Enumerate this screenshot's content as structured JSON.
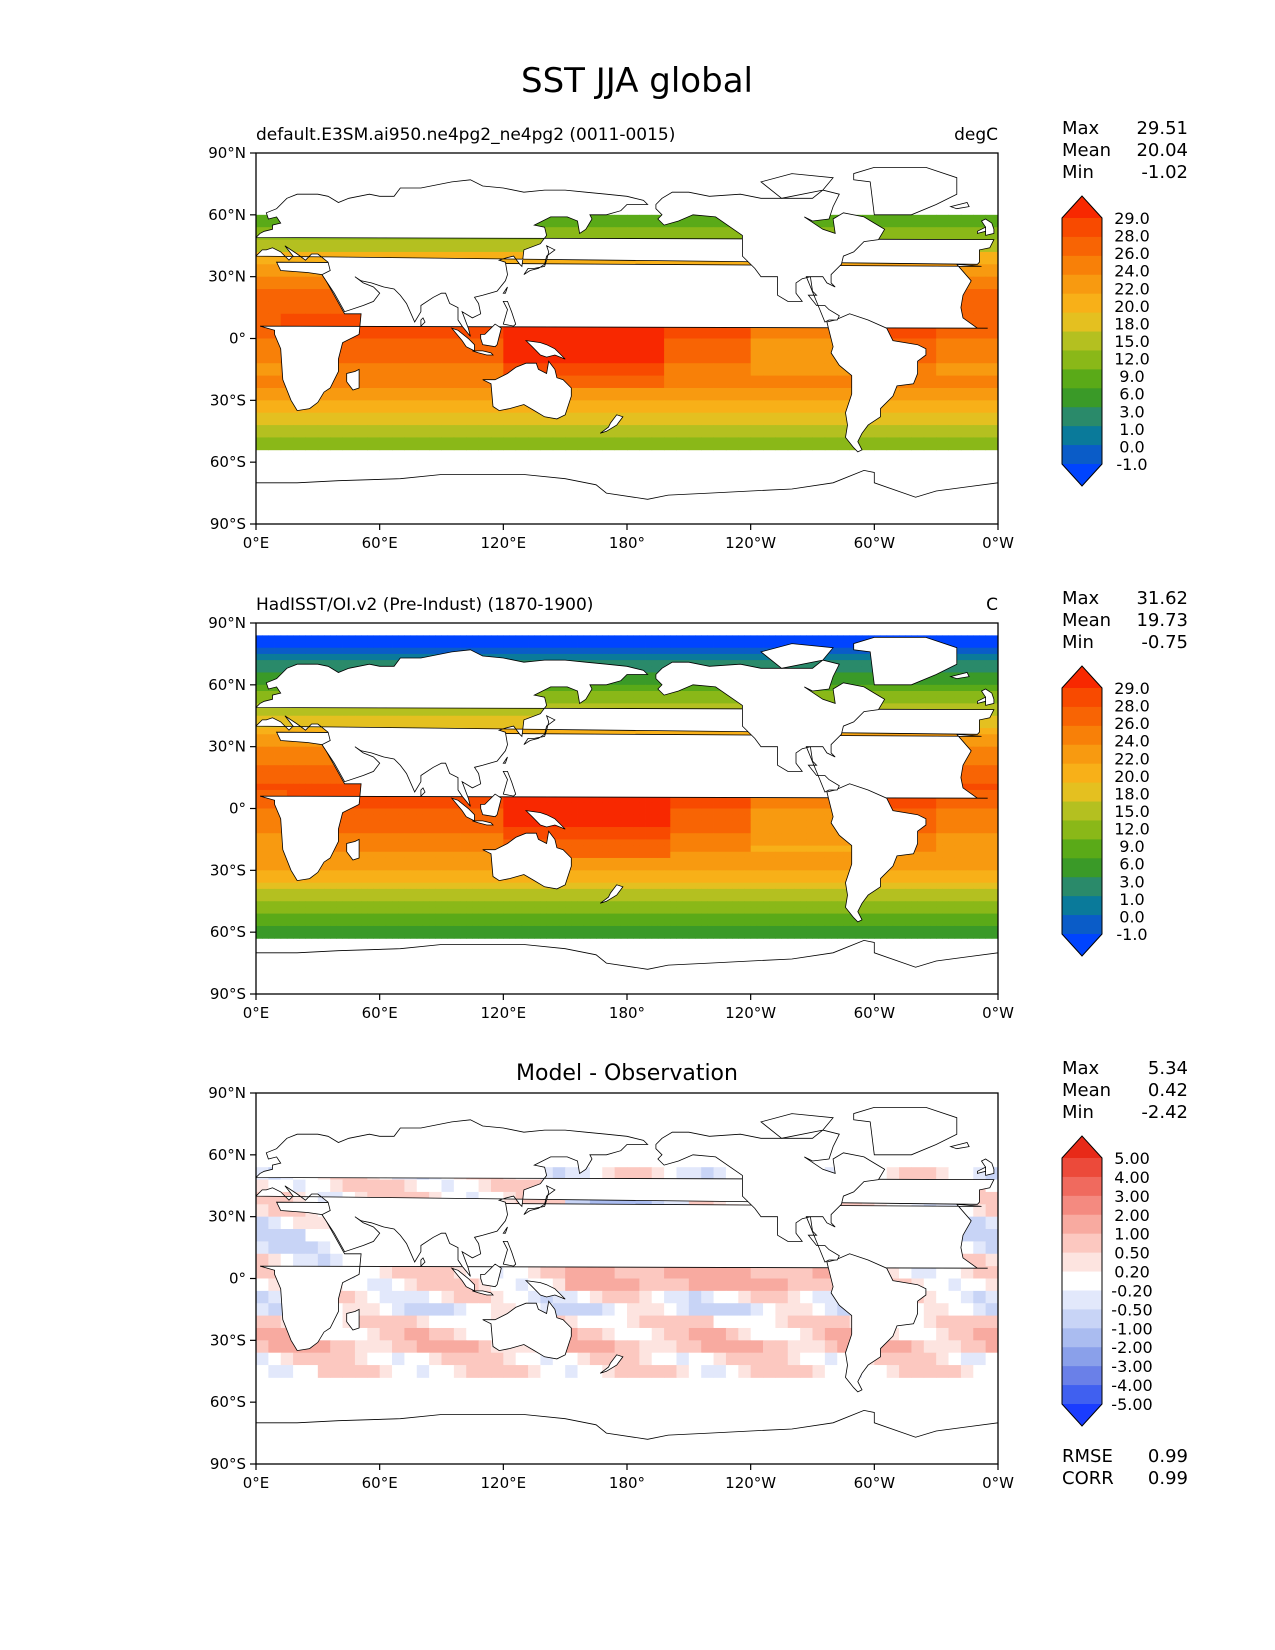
{
  "title": "SST JJA global",
  "colors": {
    "sst_levels": [
      "#0044ff",
      "#0a5cc8",
      "#0a7a9a",
      "#2a8a6a",
      "#3a9a28",
      "#5aaa18",
      "#8ab818",
      "#b4c020",
      "#e4c020",
      "#f8b018",
      "#f89a10",
      "#f88008",
      "#f86404",
      "#f84a00",
      "#f82800"
    ],
    "diff_levels": [
      "#1a3cff",
      "#4060f0",
      "#6a80e8",
      "#8aa0ea",
      "#aabcf0",
      "#c8d4f6",
      "#e2e8fb",
      "#ffffff",
      "#fde4e0",
      "#fcc8c0",
      "#f8aaa0",
      "#f48a80",
      "#f06a5e",
      "#ec4a3a",
      "#e82a18"
    ],
    "land_outline": "#000000"
  },
  "chart_data": [
    {
      "id": "model",
      "type": "heatmap",
      "title_left": "default.E3SM.ai950.ne4pg2_ne4pg2 (0011-0015)",
      "title_right": "degC",
      "stats": [
        {
          "label": "Max",
          "value": "29.51"
        },
        {
          "label": "Mean",
          "value": "20.04"
        },
        {
          "label": "Min",
          "value": "-1.02"
        }
      ],
      "colorbar_levels": [
        "29.0",
        "28.0",
        "26.0",
        "24.0",
        "22.0",
        "20.0",
        "18.0",
        "15.0",
        "12.0",
        "9.0",
        "6.0",
        "3.0",
        "1.0",
        "0.0",
        "-1.0"
      ],
      "x_ticks": [
        "0°E",
        "60°E",
        "120°E",
        "180°",
        "120°W",
        "60°W",
        "0°W"
      ],
      "y_ticks": [
        "90°N",
        "60°N",
        "30°N",
        "0°",
        "30°S",
        "60°S",
        "90°S"
      ],
      "xlim": [
        0,
        360
      ],
      "ylim": [
        -90,
        90
      ],
      "field": "sst"
    },
    {
      "id": "obs",
      "type": "heatmap",
      "title_left": "HadISST/OI.v2 (Pre-Indust) (1870-1900)",
      "title_right": "C",
      "stats": [
        {
          "label": "Max",
          "value": "31.62"
        },
        {
          "label": "Mean",
          "value": "19.73"
        },
        {
          "label": "Min",
          "value": "-0.75"
        }
      ],
      "colorbar_levels": [
        "29.0",
        "28.0",
        "26.0",
        "24.0",
        "22.0",
        "20.0",
        "18.0",
        "15.0",
        "12.0",
        "9.0",
        "6.0",
        "3.0",
        "1.0",
        "0.0",
        "-1.0"
      ],
      "x_ticks": [
        "0°E",
        "60°E",
        "120°E",
        "180°",
        "120°W",
        "60°W",
        "0°W"
      ],
      "y_ticks": [
        "90°N",
        "60°N",
        "30°N",
        "0°",
        "30°S",
        "60°S",
        "90°S"
      ],
      "xlim": [
        0,
        360
      ],
      "ylim": [
        -90,
        90
      ],
      "field": "sst"
    },
    {
      "id": "diff",
      "type": "heatmap",
      "title_center": "Model - Observation",
      "stats": [
        {
          "label": "Max",
          "value": "5.34"
        },
        {
          "label": "Mean",
          "value": "0.42"
        },
        {
          "label": "Min",
          "value": "-2.42"
        }
      ],
      "colorbar_levels": [
        "5.00",
        "4.00",
        "3.00",
        "2.00",
        "1.00",
        "0.50",
        "0.20",
        "-0.20",
        "-0.50",
        "-1.00",
        "-2.00",
        "-3.00",
        "-4.00",
        "-5.00"
      ],
      "metrics": [
        {
          "label": "RMSE",
          "value": "0.99"
        },
        {
          "label": "CORR",
          "value": "0.99"
        }
      ],
      "x_ticks": [
        "0°E",
        "60°E",
        "120°E",
        "180°",
        "120°W",
        "60°W",
        "0°W"
      ],
      "y_ticks": [
        "90°N",
        "60°N",
        "30°N",
        "0°",
        "30°S",
        "60°S",
        "90°S"
      ],
      "xlim": [
        0,
        360
      ],
      "ylim": [
        -90,
        90
      ],
      "field": "diff"
    }
  ]
}
